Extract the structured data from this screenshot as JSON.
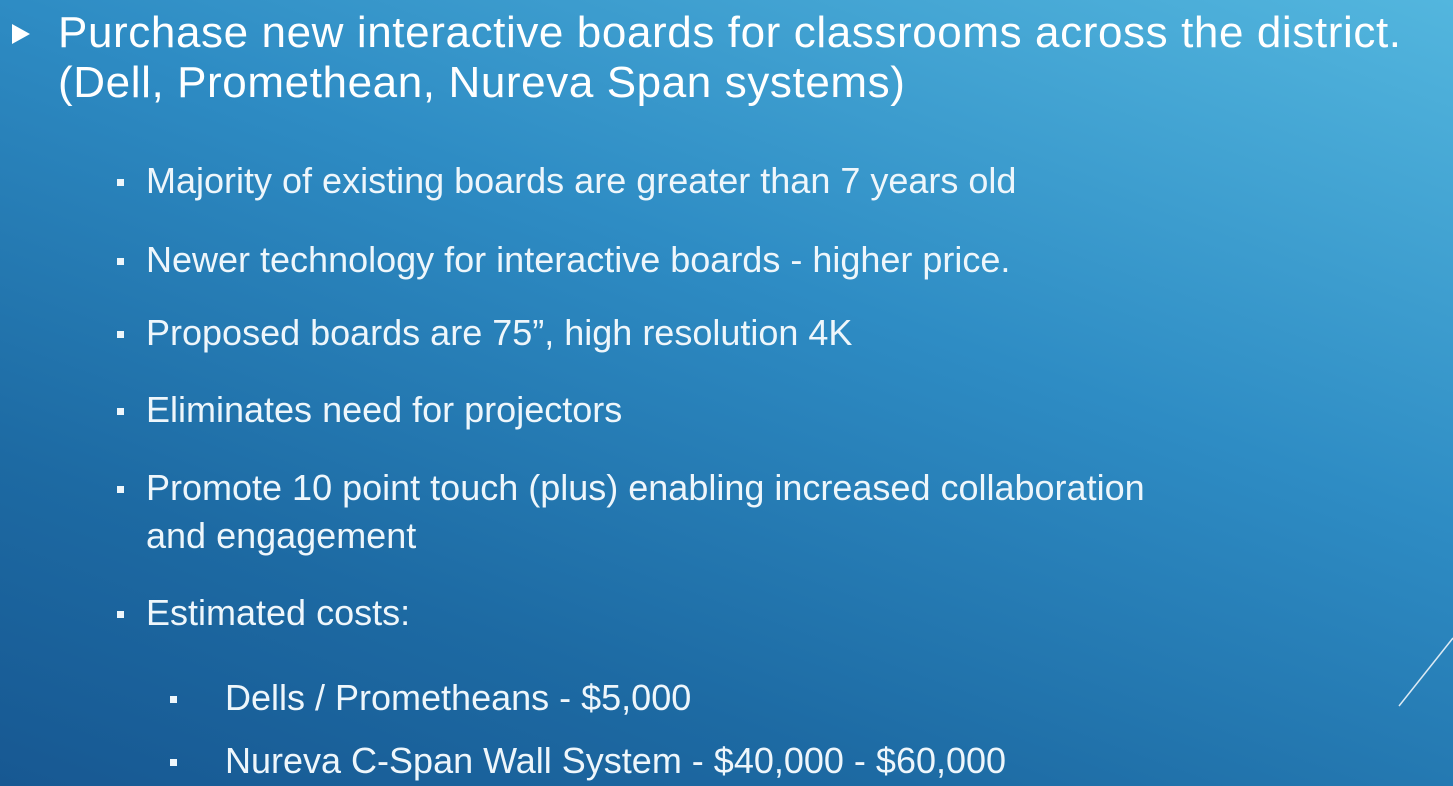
{
  "slide": {
    "heading": "Purchase new interactive boards for classrooms across the district. (Dell, Promethean, Nureva Span systems)",
    "points": [
      "Majority of existing boards are greater than 7 years old",
      "Newer technology for interactive boards - higher price.",
      "Proposed boards are 75”, high resolution 4K",
      "Eliminates need for projectors",
      "Promote 10 point touch (plus) enabling increased collaboration and engagement",
      "Estimated costs:"
    ],
    "costs": [
      "Dells / Prometheans - $5,000",
      "Nureva C-Span Wall System - $40,000 - $60,000"
    ]
  }
}
